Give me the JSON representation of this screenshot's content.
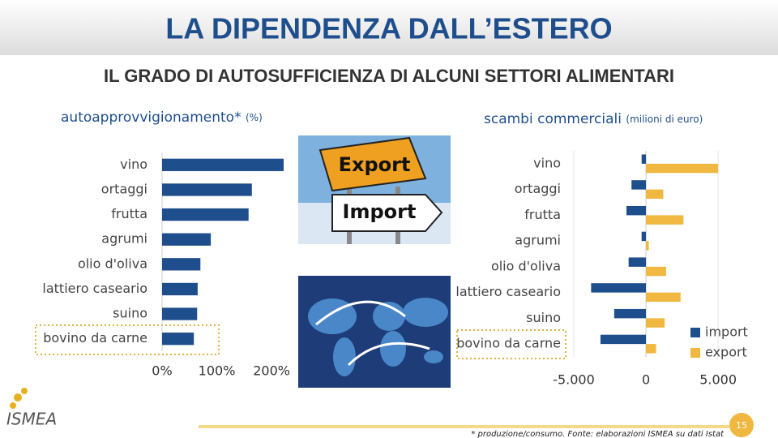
{
  "slide": {
    "title": "LA DIPENDENZA DALL’ESTERO",
    "subtitle": "IL GRADO DI AUTOSUFFICIENZA DI ALCUNI SETTORI ALIMENTARI",
    "footnote": "* produzione/consumo. Fonte: elaborazioni ISMEA su dati Istat",
    "page_number": 15,
    "logo": "ISMEA",
    "signs": [
      "Export",
      "Import"
    ]
  },
  "chart_data": [
    {
      "type": "hbar",
      "title": "autoapprovvigionamento*",
      "title_unit": "(%)",
      "categories": [
        "vino",
        "ortaggi",
        "frutta",
        "agrumi",
        "olio d'oliva",
        "lattiero caseario",
        "suino",
        "bovino da carne"
      ],
      "values": [
        222,
        164,
        158,
        89,
        70,
        65,
        64,
        58
      ],
      "color": "#1f4e8c",
      "xlim": [
        0,
        225
      ],
      "xticks": [
        {
          "value": 0,
          "label": "0%"
        },
        {
          "value": 100,
          "label": "100%"
        },
        {
          "value": 200,
          "label": "200%"
        }
      ],
      "grid": false
    },
    {
      "type": "hbar",
      "title": "scambi commerciali",
      "title_unit": "(milioni di euro)",
      "categories": [
        "vino",
        "ortaggi",
        "frutta",
        "agrumi",
        "olio d'oliva",
        "lattiero caseario",
        "suino",
        "bovino da carne"
      ],
      "series": [
        {
          "name": "import",
          "color": "#1f4e8c",
          "values": [
            -300,
            -1000,
            -1350,
            -300,
            -1200,
            -3800,
            -2200,
            -3150
          ]
        },
        {
          "name": "export",
          "color": "#f0b840",
          "values": [
            5000,
            1200,
            2600,
            200,
            1400,
            2400,
            1300,
            700
          ]
        }
      ],
      "xlim": [
        -5000,
        5500
      ],
      "xticks": [
        {
          "value": -5000,
          "label": "-5.000"
        },
        0,
        {
          "value": 5000,
          "label": "5.000"
        }
      ],
      "grid": true,
      "legend": "right"
    }
  ]
}
